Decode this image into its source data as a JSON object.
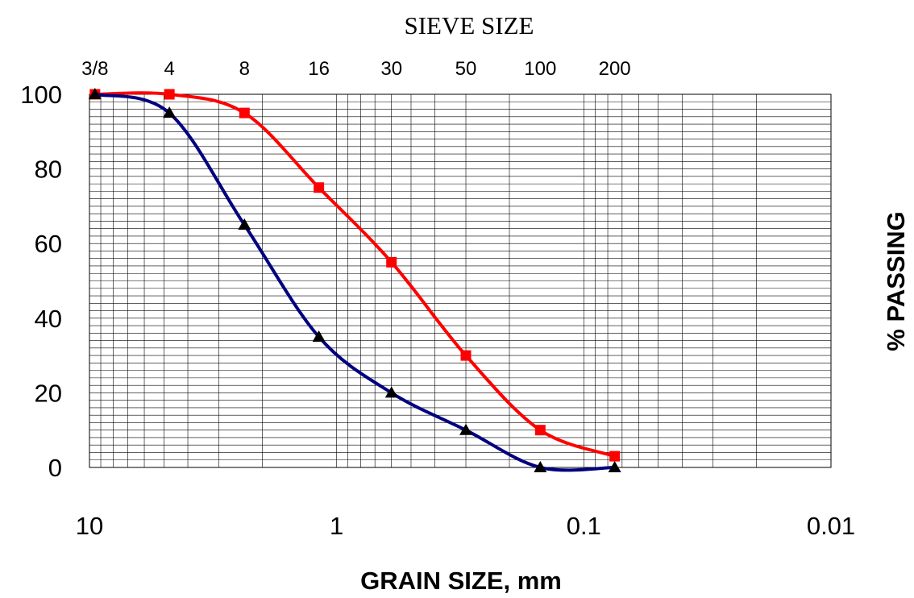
{
  "chart_data": {
    "type": "line",
    "title": "SIEVE SIZE",
    "xlabel": "GRAIN SIZE, mm",
    "ylabel": "% PASSING",
    "x_scale": "log",
    "x_reversed": true,
    "xlim": [
      10,
      0.01
    ],
    "ylim": [
      0,
      100
    ],
    "x_ticks": [
      10,
      1,
      0.1,
      0.01
    ],
    "x_tick_labels": [
      "10",
      "1",
      "0.1",
      "0.01"
    ],
    "y_ticks": [
      0,
      20,
      40,
      60,
      80,
      100
    ],
    "y_tick_labels": [
      "0",
      "20",
      "40",
      "60",
      "80",
      "100"
    ],
    "grid": true,
    "sieve_sizes": [
      {
        "label": "3/8",
        "mm": 9.5
      },
      {
        "label": "4",
        "mm": 4.75
      },
      {
        "label": "8",
        "mm": 2.36
      },
      {
        "label": "16",
        "mm": 1.18
      },
      {
        "label": "30",
        "mm": 0.6
      },
      {
        "label": "50",
        "mm": 0.3
      },
      {
        "label": "100",
        "mm": 0.15
      },
      {
        "label": "200",
        "mm": 0.075
      }
    ],
    "series": [
      {
        "color": "#ff0000",
        "marker": "square",
        "x": [
          9.5,
          4.75,
          2.36,
          1.18,
          0.6,
          0.3,
          0.15,
          0.075
        ],
        "values": [
          100,
          100,
          95,
          75,
          55,
          30,
          10,
          3
        ]
      },
      {
        "color": "#000080",
        "marker": "triangle",
        "x": [
          9.5,
          4.75,
          2.36,
          1.18,
          0.6,
          0.3,
          0.15,
          0.075
        ],
        "values": [
          100,
          95,
          65,
          35,
          20,
          10,
          0,
          0
        ]
      }
    ]
  }
}
